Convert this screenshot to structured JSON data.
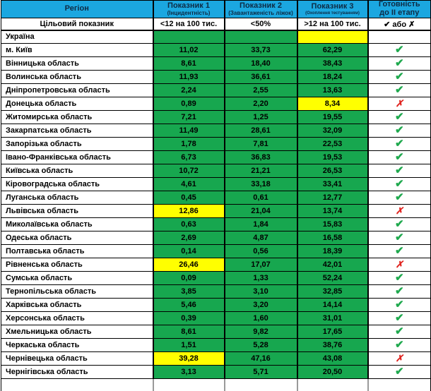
{
  "colors": {
    "header_bg": "#1ba7e0",
    "header_text": "#0d2b45",
    "green": "#17a74f",
    "yellow": "#ffff00",
    "gray": "#bfbfbf",
    "check_green": "#1fa94e",
    "cross_red": "#e0231e",
    "border": "#000000"
  },
  "glyphs": {
    "check": "✔",
    "cross": "✗"
  },
  "chart_data": {
    "type": "table",
    "columns": [
      {
        "title": "Регіон",
        "subtitle": ""
      },
      {
        "title": "Показник 1",
        "subtitle": "(Інцидентність)"
      },
      {
        "title": "Показник 2",
        "subtitle": "(Завантаженість ліжок)"
      },
      {
        "title": "Показник 3",
        "subtitle": "(Охоплення тестуванням)"
      },
      {
        "title": "Готовність",
        "subtitle": "до ІІ етапу"
      }
    ],
    "target_row": {
      "label": "Цільовий показник",
      "values": [
        "<12 на 100 тис.",
        "<50%",
        ">12 на 100 тис.",
        "✔ або ✗"
      ]
    },
    "rows": [
      {
        "region": "Україна",
        "values": [
          "",
          "",
          ""
        ],
        "yellow": [
          2
        ],
        "ready": "",
        "ready_bg": "gray"
      },
      {
        "region": "м. Київ",
        "values": [
          "11,02",
          "33,73",
          "62,29"
        ],
        "yellow": [],
        "ready": "check",
        "ready_bg": "white"
      },
      {
        "region": "Вінницька область",
        "values": [
          "8,61",
          "18,40",
          "38,43"
        ],
        "yellow": [],
        "ready": "check",
        "ready_bg": "white"
      },
      {
        "region": "Волинська область",
        "values": [
          "11,93",
          "36,61",
          "18,24"
        ],
        "yellow": [],
        "ready": "check",
        "ready_bg": "white"
      },
      {
        "region": "Дніпропетровська область",
        "values": [
          "2,24",
          "2,55",
          "13,63"
        ],
        "yellow": [],
        "ready": "check",
        "ready_bg": "white"
      },
      {
        "region": "Донецька область",
        "values": [
          "0,89",
          "2,20",
          "8,34"
        ],
        "yellow": [
          2
        ],
        "ready": "cross",
        "ready_bg": "white"
      },
      {
        "region": "Житомирська область",
        "values": [
          "7,21",
          "1,25",
          "19,55"
        ],
        "yellow": [],
        "ready": "check",
        "ready_bg": "white"
      },
      {
        "region": "Закарпатська область",
        "values": [
          "11,49",
          "28,61",
          "32,09"
        ],
        "yellow": [],
        "ready": "check",
        "ready_bg": "white"
      },
      {
        "region": "Запорізька область",
        "values": [
          "1,78",
          "7,81",
          "22,53"
        ],
        "yellow": [],
        "ready": "check",
        "ready_bg": "white"
      },
      {
        "region": "Івано-Франківська область",
        "values": [
          "6,73",
          "36,83",
          "19,53"
        ],
        "yellow": [],
        "ready": "check",
        "ready_bg": "white"
      },
      {
        "region": "Київська область",
        "values": [
          "10,72",
          "21,21",
          "26,53"
        ],
        "yellow": [],
        "ready": "check",
        "ready_bg": "white"
      },
      {
        "region": "Кіровоградська область",
        "values": [
          "4,61",
          "33,18",
          "33,41"
        ],
        "yellow": [],
        "ready": "check",
        "ready_bg": "white"
      },
      {
        "region": "Луганська область",
        "values": [
          "0,45",
          "0,61",
          "12,77"
        ],
        "yellow": [],
        "ready": "check",
        "ready_bg": "white"
      },
      {
        "region": "Львівська область",
        "values": [
          "12,86",
          "21,04",
          "13,74"
        ],
        "yellow": [
          0
        ],
        "ready": "cross",
        "ready_bg": "white"
      },
      {
        "region": "Миколаївська область",
        "values": [
          "0,63",
          "1,84",
          "15,83"
        ],
        "yellow": [],
        "ready": "check",
        "ready_bg": "white"
      },
      {
        "region": "Одеська область",
        "values": [
          "2,69",
          "4,87",
          "16,58"
        ],
        "yellow": [],
        "ready": "check",
        "ready_bg": "white"
      },
      {
        "region": "Полтавська область",
        "values": [
          "0,14",
          "0,56",
          "18,39"
        ],
        "yellow": [],
        "ready": "check",
        "ready_bg": "white"
      },
      {
        "region": "Рівненська область",
        "values": [
          "26,46",
          "17,07",
          "42,01"
        ],
        "yellow": [
          0
        ],
        "ready": "cross",
        "ready_bg": "white"
      },
      {
        "region": "Сумська область",
        "values": [
          "0,09",
          "1,33",
          "52,24"
        ],
        "yellow": [],
        "ready": "check",
        "ready_bg": "white"
      },
      {
        "region": "Тернопільська область",
        "values": [
          "3,85",
          "3,10",
          "32,85"
        ],
        "yellow": [],
        "ready": "check",
        "ready_bg": "white"
      },
      {
        "region": "Харківська область",
        "values": [
          "5,46",
          "3,20",
          "14,14"
        ],
        "yellow": [],
        "ready": "check",
        "ready_bg": "white"
      },
      {
        "region": "Херсонська область",
        "values": [
          "0,39",
          "1,60",
          "31,01"
        ],
        "yellow": [],
        "ready": "check",
        "ready_bg": "white"
      },
      {
        "region": "Хмельницька область",
        "values": [
          "8,61",
          "9,82",
          "17,65"
        ],
        "yellow": [],
        "ready": "check",
        "ready_bg": "white"
      },
      {
        "region": "Черкаська область",
        "values": [
          "1,51",
          "5,28",
          "38,76"
        ],
        "yellow": [],
        "ready": "check",
        "ready_bg": "white"
      },
      {
        "region": "Чернівецька область",
        "values": [
          "39,28",
          "47,16",
          "43,08"
        ],
        "yellow": [
          0
        ],
        "ready": "cross",
        "ready_bg": "white"
      },
      {
        "region": "Чернігівська область",
        "values": [
          "3,13",
          "5,71",
          "20,50"
        ],
        "yellow": [],
        "ready": "check",
        "ready_bg": "white"
      }
    ]
  }
}
